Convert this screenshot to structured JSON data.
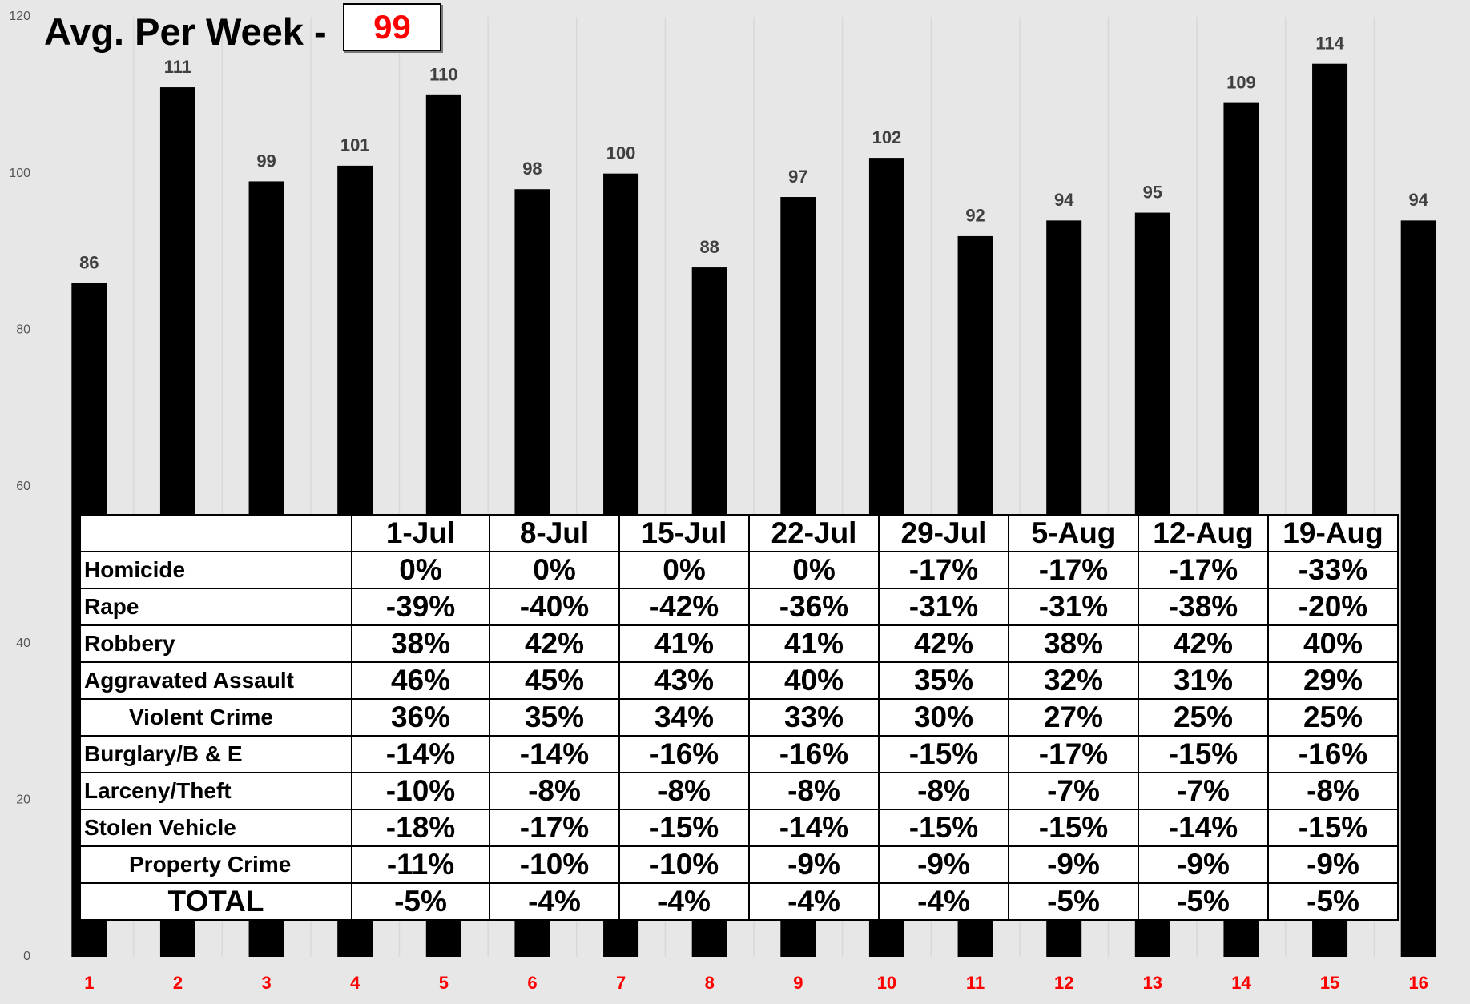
{
  "chart_data": {
    "type": "bar",
    "title": "Avg. Per Week -",
    "title_value": "99",
    "categories": [
      "1",
      "2",
      "3",
      "4",
      "5",
      "6",
      "7",
      "8",
      "9",
      "10",
      "11",
      "12",
      "13",
      "14",
      "15",
      "16"
    ],
    "values": [
      86,
      111,
      99,
      101,
      110,
      98,
      100,
      88,
      97,
      102,
      92,
      94,
      95,
      109,
      114,
      94
    ],
    "color": "#000000",
    "ylim": [
      0,
      120
    ],
    "yticks": [
      0,
      20,
      40,
      60,
      80,
      100,
      120
    ],
    "grid": false
  },
  "table": {
    "columns": [
      "1-Jul",
      "8-Jul",
      "15-Jul",
      "22-Jul",
      "29-Jul",
      "5-Aug",
      "12-Aug",
      "19-Aug"
    ],
    "rows": [
      {
        "label": "Homicide",
        "cells": [
          "0%",
          "0%",
          "0%",
          "0%",
          "-17%",
          "-17%",
          "-17%",
          "-33%"
        ]
      },
      {
        "label": "Rape",
        "cells": [
          "-39%",
          "-40%",
          "-42%",
          "-36%",
          "-31%",
          "-31%",
          "-38%",
          "-20%"
        ]
      },
      {
        "label": "Robbery",
        "cells": [
          "38%",
          "42%",
          "41%",
          "41%",
          "42%",
          "38%",
          "42%",
          "40%"
        ]
      },
      {
        "label": "Aggravated Assault",
        "cells": [
          "46%",
          "45%",
          "43%",
          "40%",
          "35%",
          "32%",
          "31%",
          "29%"
        ]
      },
      {
        "label": "Violent Crime",
        "cells": [
          "36%",
          "35%",
          "34%",
          "33%",
          "30%",
          "27%",
          "25%",
          "25%"
        ]
      },
      {
        "label": "Burglary/B & E",
        "cells": [
          "-14%",
          "-14%",
          "-16%",
          "-16%",
          "-15%",
          "-17%",
          "-15%",
          "-16%"
        ]
      },
      {
        "label": "Larceny/Theft",
        "cells": [
          "-10%",
          "-8%",
          "-8%",
          "-8%",
          "-8%",
          "-7%",
          "-7%",
          "-8%"
        ]
      },
      {
        "label": "Stolen Vehicle",
        "cells": [
          "-18%",
          "-17%",
          "-15%",
          "-14%",
          "-15%",
          "-15%",
          "-14%",
          "-15%"
        ]
      },
      {
        "label": "Property Crime",
        "cells": [
          "-11%",
          "-10%",
          "-10%",
          "-9%",
          "-9%",
          "-9%",
          "-9%",
          "-9%"
        ]
      },
      {
        "label": "TOTAL",
        "cells": [
          "-5%",
          "-4%",
          "-4%",
          "-4%",
          "-4%",
          "-5%",
          "-5%",
          "-5%"
        ]
      }
    ]
  }
}
